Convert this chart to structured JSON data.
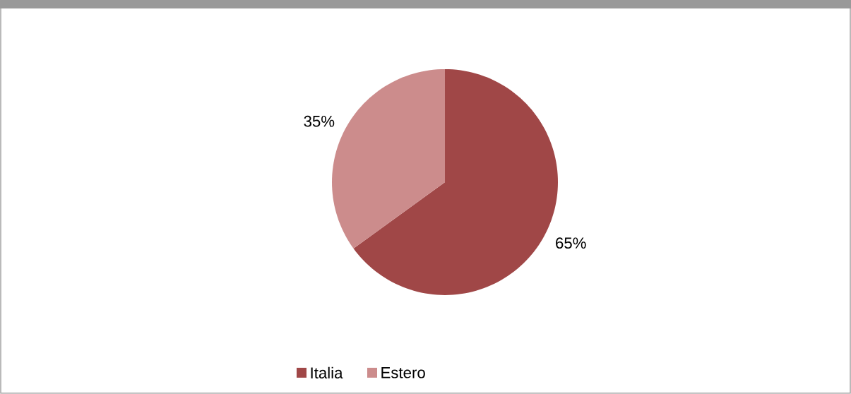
{
  "chart_data": {
    "type": "pie",
    "categories": [
      "Italia",
      "Estero"
    ],
    "values": [
      65,
      35
    ],
    "colors": [
      "#a04747",
      "#cc8c8c"
    ],
    "value_labels": [
      "65%",
      "35%"
    ],
    "legend": "bottom"
  }
}
